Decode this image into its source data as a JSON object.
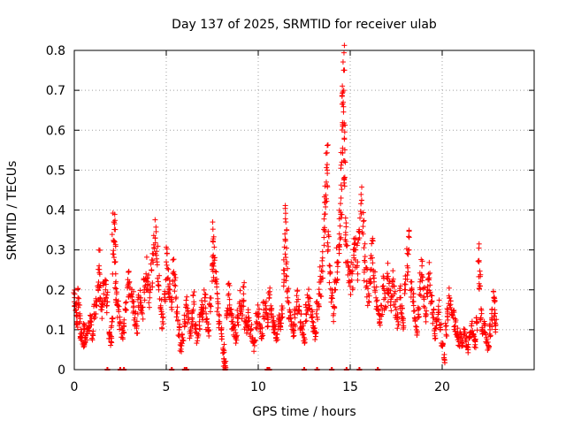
{
  "chart_data": {
    "type": "scatter",
    "title": "Day 137 of 2025, SRMTID for receiver ulab",
    "xlabel": "GPS time / hours",
    "ylabel": "SRMTID / TECUs",
    "xlim": [
      0,
      25
    ],
    "ylim": [
      0,
      0.8
    ],
    "x_ticks": [
      0,
      5,
      10,
      15,
      20
    ],
    "y_ticks": [
      0,
      0.1,
      0.2,
      0.3,
      0.4,
      0.5,
      0.6,
      0.7,
      0.8
    ],
    "x_tick_labels": [
      "0",
      "5",
      "10",
      "15",
      "20"
    ],
    "y_tick_labels": [
      "0",
      "0.1",
      "0.2",
      "0.3",
      "0.4",
      "0.5",
      "0.6",
      "0.7",
      "0.8"
    ],
    "grid": true,
    "marker": "+",
    "series_color": "#ff0000",
    "baseline_points_x": [
      1.8,
      2.5,
      2.7,
      5.3,
      6.0,
      6.1,
      8.2,
      10.5,
      10.6,
      12.5,
      13.2,
      14.0,
      14.8,
      15.5,
      16.5
    ],
    "series": [
      {
        "name": "SRMTID",
        "points": [
          [
            0.0,
            0.17
          ],
          [
            0.1,
            0.15
          ],
          [
            0.15,
            0.12
          ],
          [
            0.2,
            0.18
          ],
          [
            0.3,
            0.14
          ],
          [
            0.35,
            0.09
          ],
          [
            0.4,
            0.08
          ],
          [
            0.5,
            0.06
          ],
          [
            0.55,
            0.1
          ],
          [
            0.6,
            0.07
          ],
          [
            0.7,
            0.09
          ],
          [
            0.8,
            0.11
          ],
          [
            0.9,
            0.12
          ],
          [
            1.0,
            0.09
          ],
          [
            1.1,
            0.14
          ],
          [
            1.2,
            0.16
          ],
          [
            1.3,
            0.21
          ],
          [
            1.35,
            0.26
          ],
          [
            1.4,
            0.18
          ],
          [
            1.5,
            0.15
          ],
          [
            1.6,
            0.19
          ],
          [
            1.7,
            0.2
          ],
          [
            1.8,
            0.17
          ],
          [
            1.9,
            0.09
          ],
          [
            2.0,
            0.07
          ],
          [
            2.05,
            0.12
          ],
          [
            2.1,
            0.29
          ],
          [
            2.15,
            0.37
          ],
          [
            2.2,
            0.32
          ],
          [
            2.25,
            0.24
          ],
          [
            2.3,
            0.19
          ],
          [
            2.4,
            0.15
          ],
          [
            2.5,
            0.12
          ],
          [
            2.6,
            0.09
          ],
          [
            2.7,
            0.11
          ],
          [
            2.8,
            0.15
          ],
          [
            2.9,
            0.21
          ],
          [
            3.0,
            0.22
          ],
          [
            3.1,
            0.19
          ],
          [
            3.2,
            0.17
          ],
          [
            3.3,
            0.13
          ],
          [
            3.4,
            0.11
          ],
          [
            3.5,
            0.16
          ],
          [
            3.6,
            0.18
          ],
          [
            3.7,
            0.14
          ],
          [
            3.8,
            0.2
          ],
          [
            3.9,
            0.24
          ],
          [
            4.0,
            0.22
          ],
          [
            4.1,
            0.18
          ],
          [
            4.2,
            0.25
          ],
          [
            4.3,
            0.29
          ],
          [
            4.4,
            0.33
          ],
          [
            4.5,
            0.27
          ],
          [
            4.6,
            0.21
          ],
          [
            4.7,
            0.16
          ],
          [
            4.8,
            0.12
          ],
          [
            4.9,
            0.19
          ],
          [
            5.0,
            0.27
          ],
          [
            5.1,
            0.23
          ],
          [
            5.2,
            0.2
          ],
          [
            5.3,
            0.17
          ],
          [
            5.4,
            0.24
          ],
          [
            5.5,
            0.21
          ],
          [
            5.6,
            0.14
          ],
          [
            5.7,
            0.1
          ],
          [
            5.8,
            0.06
          ],
          [
            5.9,
            0.08
          ],
          [
            6.0,
            0.12
          ],
          [
            6.1,
            0.16
          ],
          [
            6.2,
            0.14
          ],
          [
            6.3,
            0.09
          ],
          [
            6.4,
            0.13
          ],
          [
            6.5,
            0.17
          ],
          [
            6.6,
            0.11
          ],
          [
            6.7,
            0.08
          ],
          [
            6.8,
            0.12
          ],
          [
            6.9,
            0.15
          ],
          [
            7.0,
            0.14
          ],
          [
            7.1,
            0.18
          ],
          [
            7.2,
            0.12
          ],
          [
            7.3,
            0.1
          ],
          [
            7.4,
            0.16
          ],
          [
            7.5,
            0.26
          ],
          [
            7.55,
            0.32
          ],
          [
            7.6,
            0.28
          ],
          [
            7.7,
            0.22
          ],
          [
            7.8,
            0.17
          ],
          [
            7.9,
            0.12
          ],
          [
            8.0,
            0.09
          ],
          [
            8.1,
            0.05
          ],
          [
            8.15,
            0.02
          ],
          [
            8.2,
            0.01
          ],
          [
            8.3,
            0.14
          ],
          [
            8.4,
            0.19
          ],
          [
            8.5,
            0.15
          ],
          [
            8.6,
            0.12
          ],
          [
            8.7,
            0.1
          ],
          [
            8.8,
            0.08
          ],
          [
            8.9,
            0.13
          ],
          [
            9.0,
            0.17
          ],
          [
            9.1,
            0.15
          ],
          [
            9.2,
            0.19
          ],
          [
            9.3,
            0.12
          ],
          [
            9.4,
            0.11
          ],
          [
            9.5,
            0.13
          ],
          [
            9.6,
            0.1
          ],
          [
            9.7,
            0.08
          ],
          [
            9.8,
            0.06
          ],
          [
            9.9,
            0.12
          ],
          [
            10.0,
            0.14
          ],
          [
            10.1,
            0.11
          ],
          [
            10.2,
            0.09
          ],
          [
            10.3,
            0.15
          ],
          [
            10.4,
            0.16
          ],
          [
            10.5,
            0.13
          ],
          [
            10.6,
            0.18
          ],
          [
            10.7,
            0.14
          ],
          [
            10.8,
            0.12
          ],
          [
            10.9,
            0.1
          ],
          [
            11.0,
            0.08
          ],
          [
            11.1,
            0.12
          ],
          [
            11.2,
            0.11
          ],
          [
            11.3,
            0.14
          ],
          [
            11.4,
            0.24
          ],
          [
            11.45,
            0.34
          ],
          [
            11.5,
            0.37
          ],
          [
            11.55,
            0.27
          ],
          [
            11.6,
            0.18
          ],
          [
            11.7,
            0.15
          ],
          [
            11.8,
            0.12
          ],
          [
            11.9,
            0.1
          ],
          [
            12.0,
            0.13
          ],
          [
            12.1,
            0.17
          ],
          [
            12.2,
            0.15
          ],
          [
            12.3,
            0.12
          ],
          [
            12.4,
            0.1
          ],
          [
            12.5,
            0.08
          ],
          [
            12.6,
            0.14
          ],
          [
            12.7,
            0.18
          ],
          [
            12.8,
            0.16
          ],
          [
            12.9,
            0.13
          ],
          [
            13.0,
            0.11
          ],
          [
            13.1,
            0.09
          ],
          [
            13.2,
            0.15
          ],
          [
            13.3,
            0.19
          ],
          [
            13.4,
            0.22
          ],
          [
            13.5,
            0.26
          ],
          [
            13.6,
            0.35
          ],
          [
            13.65,
            0.42
          ],
          [
            13.7,
            0.47
          ],
          [
            13.75,
            0.5
          ],
          [
            13.8,
            0.3
          ],
          [
            13.9,
            0.24
          ],
          [
            14.0,
            0.18
          ],
          [
            14.1,
            0.14
          ],
          [
            14.2,
            0.2
          ],
          [
            14.3,
            0.27
          ],
          [
            14.4,
            0.31
          ],
          [
            14.45,
            0.36
          ],
          [
            14.5,
            0.43
          ],
          [
            14.55,
            0.52
          ],
          [
            14.6,
            0.61
          ],
          [
            14.62,
            0.67
          ],
          [
            14.65,
            0.7
          ],
          [
            14.68,
            0.58
          ],
          [
            14.7,
            0.46
          ],
          [
            14.75,
            0.38
          ],
          [
            14.8,
            0.31
          ],
          [
            14.9,
            0.26
          ],
          [
            15.0,
            0.22
          ],
          [
            15.1,
            0.24
          ],
          [
            15.2,
            0.28
          ],
          [
            15.3,
            0.3
          ],
          [
            15.4,
            0.27
          ],
          [
            15.5,
            0.33
          ],
          [
            15.6,
            0.39
          ],
          [
            15.7,
            0.34
          ],
          [
            15.8,
            0.27
          ],
          [
            15.9,
            0.22
          ],
          [
            16.0,
            0.19
          ],
          [
            16.1,
            0.25
          ],
          [
            16.2,
            0.28
          ],
          [
            16.3,
            0.22
          ],
          [
            16.4,
            0.18
          ],
          [
            16.5,
            0.15
          ],
          [
            16.6,
            0.12
          ],
          [
            16.7,
            0.16
          ],
          [
            16.8,
            0.21
          ],
          [
            16.9,
            0.18
          ],
          [
            17.0,
            0.23
          ],
          [
            17.1,
            0.2
          ],
          [
            17.2,
            0.17
          ],
          [
            17.3,
            0.22
          ],
          [
            17.4,
            0.19
          ],
          [
            17.5,
            0.15
          ],
          [
            17.6,
            0.12
          ],
          [
            17.7,
            0.18
          ],
          [
            17.8,
            0.14
          ],
          [
            17.9,
            0.11
          ],
          [
            18.0,
            0.2
          ],
          [
            18.1,
            0.26
          ],
          [
            18.2,
            0.3
          ],
          [
            18.3,
            0.22
          ],
          [
            18.4,
            0.17
          ],
          [
            18.5,
            0.13
          ],
          [
            18.6,
            0.1
          ],
          [
            18.7,
            0.15
          ],
          [
            18.8,
            0.22
          ],
          [
            18.9,
            0.26
          ],
          [
            19.0,
            0.18
          ],
          [
            19.1,
            0.14
          ],
          [
            19.2,
            0.2
          ],
          [
            19.3,
            0.23
          ],
          [
            19.4,
            0.17
          ],
          [
            19.5,
            0.13
          ],
          [
            19.6,
            0.09
          ],
          [
            19.7,
            0.12
          ],
          [
            19.8,
            0.15
          ],
          [
            19.9,
            0.1
          ],
          [
            20.0,
            0.06
          ],
          [
            20.1,
            0.03
          ],
          [
            20.2,
            0.1
          ],
          [
            20.3,
            0.14
          ],
          [
            20.4,
            0.18
          ],
          [
            20.5,
            0.15
          ],
          [
            20.6,
            0.13
          ],
          [
            20.7,
            0.11
          ],
          [
            20.8,
            0.09
          ],
          [
            20.9,
            0.07
          ],
          [
            21.0,
            0.08
          ],
          [
            21.1,
            0.06
          ],
          [
            21.2,
            0.09
          ],
          [
            21.3,
            0.07
          ],
          [
            21.4,
            0.05
          ],
          [
            21.5,
            0.08
          ],
          [
            21.6,
            0.11
          ],
          [
            21.7,
            0.09
          ],
          [
            21.8,
            0.07
          ],
          [
            21.9,
            0.12
          ],
          [
            22.0,
            0.27
          ],
          [
            22.05,
            0.21
          ],
          [
            22.1,
            0.13
          ],
          [
            22.2,
            0.09
          ],
          [
            22.3,
            0.11
          ],
          [
            22.4,
            0.08
          ],
          [
            22.5,
            0.06
          ],
          [
            22.6,
            0.1
          ],
          [
            22.7,
            0.13
          ],
          [
            22.8,
            0.18
          ],
          [
            22.85,
            0.15
          ],
          [
            22.9,
            0.11
          ]
        ]
      }
    ]
  }
}
